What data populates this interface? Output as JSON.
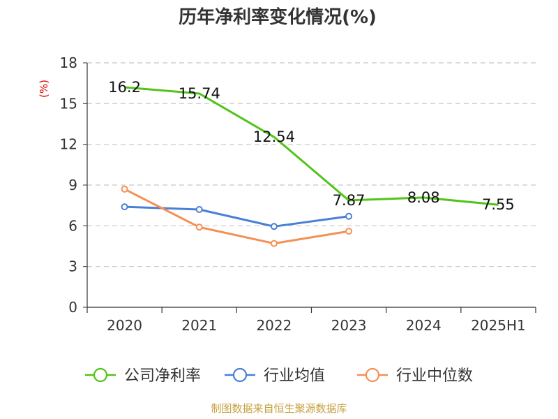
{
  "colors": {
    "company": "#52c41a",
    "industry_avg": "#4a7fd6",
    "industry_median": "#f59055",
    "source": "#c8a040",
    "ylabel": "#e00000"
  },
  "source": "制图数据来自恒生聚源数据库",
  "chart_data": {
    "type": "line",
    "title": "历年净利率变化情况(%)",
    "xlabel": "",
    "ylabel": "(%)",
    "categories": [
      "2020",
      "2021",
      "2022",
      "2023",
      "2024",
      "2025H1"
    ],
    "ylim": [
      0,
      18
    ],
    "yticks": [
      0,
      3,
      6,
      9,
      12,
      15,
      18
    ],
    "grid": true,
    "legend_position": "bottom",
    "series": [
      {
        "name": "公司净利率",
        "values": [
          16.2,
          15.74,
          12.54,
          7.87,
          8.08,
          7.55
        ],
        "labels": [
          "16.2",
          "15.74",
          "12.54",
          "7.87",
          "8.08",
          "7.55"
        ]
      },
      {
        "name": "行业均值",
        "values": [
          7.4,
          7.2,
          5.95,
          6.7,
          null,
          null
        ]
      },
      {
        "name": "行业中位数",
        "values": [
          8.7,
          5.9,
          4.7,
          5.6,
          null,
          null
        ]
      }
    ]
  }
}
